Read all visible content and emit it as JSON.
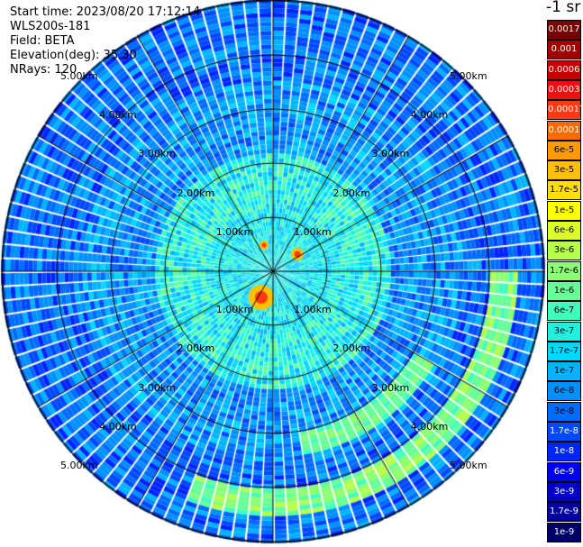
{
  "header": {
    "start_time": "Start time: 2023/08/20 17:12:14",
    "device": "WLS200s-181",
    "field": "Field: BETA",
    "elevation": "Elevation(deg): 35.30",
    "nrays": "NRays: 120"
  },
  "colorbar": {
    "unit": "-1 sr",
    "levels": [
      {
        "label": "0.0017",
        "bg": "#7a0000",
        "fg": "#ffffff"
      },
      {
        "label": "0.001",
        "bg": "#a00000",
        "fg": "#ffffff"
      },
      {
        "label": "0.0006",
        "bg": "#c80000",
        "fg": "#ffffff"
      },
      {
        "label": "0.0003",
        "bg": "#ee1010",
        "fg": "#ffffff"
      },
      {
        "label": "0.00017",
        "bg": "#ff3a10",
        "fg": "#ffffff"
      },
      {
        "label": "0.0001",
        "bg": "#ff6a00",
        "fg": "#ffffff"
      },
      {
        "label": "6e-5",
        "bg": "#ff9a00",
        "fg": "#000000"
      },
      {
        "label": "3e-5",
        "bg": "#ffc000",
        "fg": "#000000"
      },
      {
        "label": "1.7e-5",
        "bg": "#ffe000",
        "fg": "#000000"
      },
      {
        "label": "1e-5",
        "bg": "#ffff00",
        "fg": "#000000"
      },
      {
        "label": "6e-6",
        "bg": "#dcff26",
        "fg": "#000000"
      },
      {
        "label": "3e-6",
        "bg": "#b6ff4a",
        "fg": "#000000"
      },
      {
        "label": "1.7e-6",
        "bg": "#8cff72",
        "fg": "#000000"
      },
      {
        "label": "1e-6",
        "bg": "#66ff98",
        "fg": "#000000"
      },
      {
        "label": "6e-7",
        "bg": "#40ffbe",
        "fg": "#000000"
      },
      {
        "label": "3e-7",
        "bg": "#20f0e0",
        "fg": "#000000"
      },
      {
        "label": "1.7e-7",
        "bg": "#00d8ff",
        "fg": "#000000"
      },
      {
        "label": "1e-7",
        "bg": "#00b4ff",
        "fg": "#000000"
      },
      {
        "label": "6e-8",
        "bg": "#0090ff",
        "fg": "#000000"
      },
      {
        "label": "3e-8",
        "bg": "#006cff",
        "fg": "#000000"
      },
      {
        "label": "1.7e-8",
        "bg": "#0048ff",
        "fg": "#ffffff"
      },
      {
        "label": "1e-8",
        "bg": "#0024ff",
        "fg": "#ffffff"
      },
      {
        "label": "6e-9",
        "bg": "#0000f0",
        "fg": "#ffffff"
      },
      {
        "label": "3e-9",
        "bg": "#0000c8",
        "fg": "#ffffff"
      },
      {
        "label": "1.7e-9",
        "bg": "#0000a0",
        "fg": "#ffffff"
      },
      {
        "label": "1e-9",
        "bg": "#00006a",
        "fg": "#ffffff"
      }
    ]
  },
  "range_labels": [
    "1.00km",
    "2.00km",
    "3.00km",
    "4.00km",
    "5.00km"
  ],
  "range_rings_km": [
    1,
    2,
    3,
    4,
    5
  ]
}
